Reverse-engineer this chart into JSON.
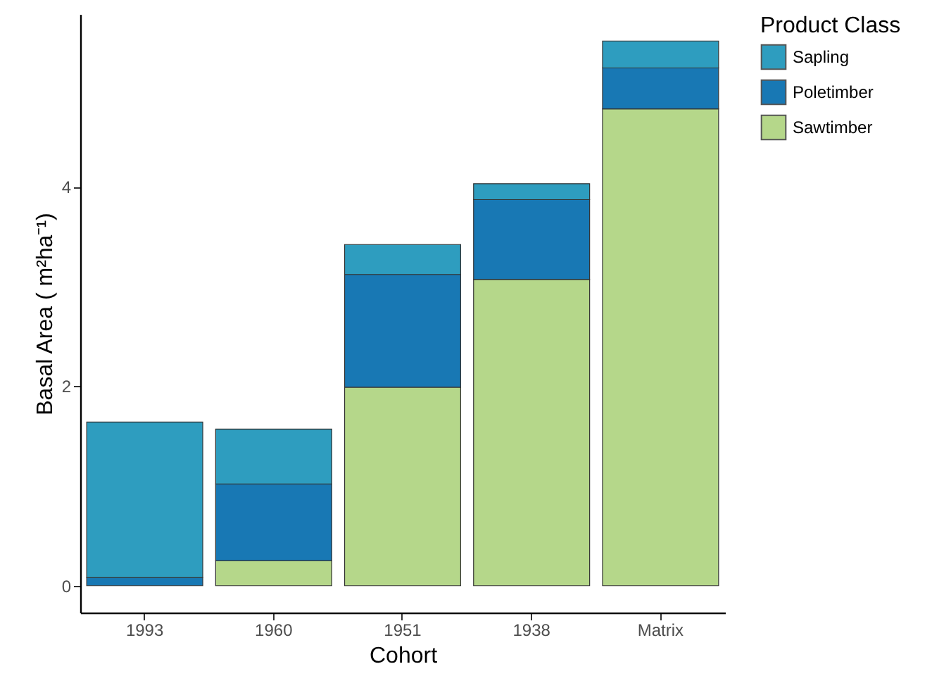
{
  "chart_data": {
    "type": "bar",
    "stacked": true,
    "xlabel": "Cohort",
    "ylabel": "Basal Area ( m²ha⁻¹)",
    "legend_title": "Product Class",
    "legend": "right",
    "categories": [
      "1993",
      "1960",
      "1951",
      "1938",
      "Matrix"
    ],
    "series": [
      {
        "name": "Sawtimber",
        "color": "#b5d78a",
        "values": [
          null,
          0.25,
          1.99,
          3.07,
          4.78
        ]
      },
      {
        "name": "Poletimber",
        "color": "#1878b4",
        "values": [
          0.08,
          0.77,
          1.13,
          0.8,
          0.41
        ]
      },
      {
        "name": "Sapling",
        "color": "#2e9dbf",
        "values": [
          1.56,
          0.55,
          0.3,
          0.16,
          0.27
        ]
      }
    ],
    "ylim": [
      -0.27,
      5.73
    ],
    "yticks": [
      0,
      2,
      4
    ]
  }
}
